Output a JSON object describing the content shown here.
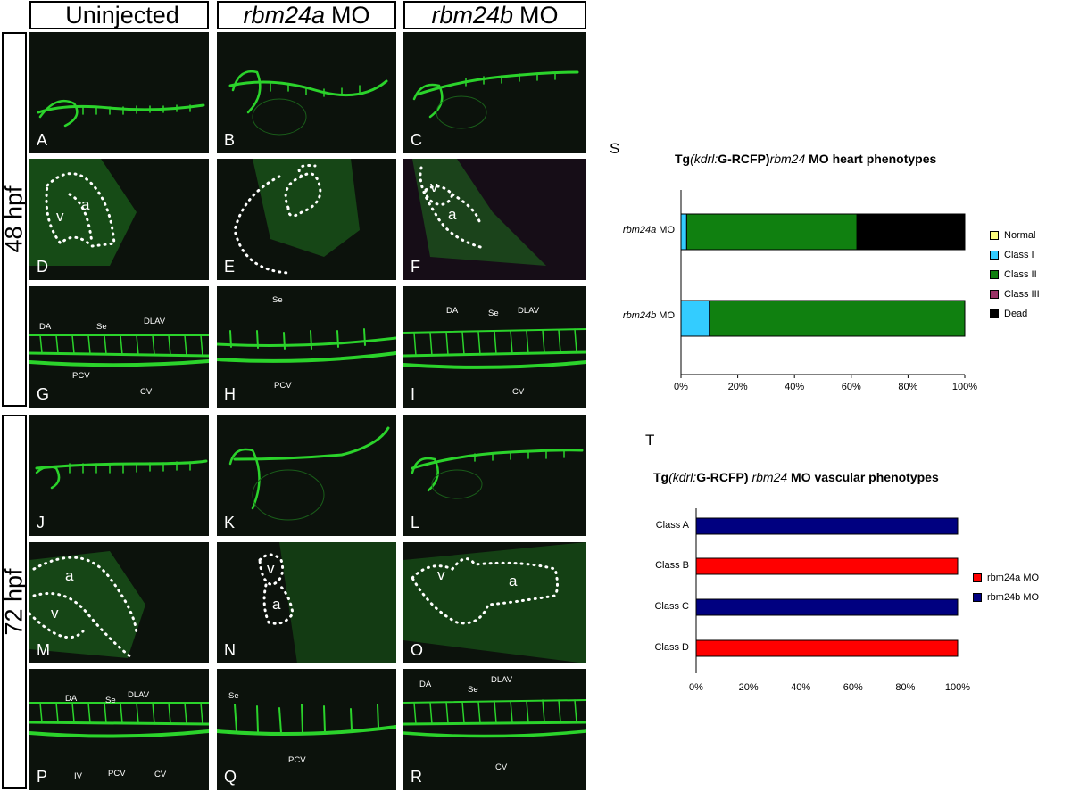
{
  "columns": [
    {
      "italic": "",
      "text": "Uninjected"
    },
    {
      "italic": "rbm24a",
      "text": "MO"
    },
    {
      "italic": "rbm24b",
      "text": "MO"
    }
  ],
  "rows": {
    "top": "48 hpf",
    "bottom": "72 hpf"
  },
  "panels": [
    "A",
    "B",
    "C",
    "D",
    "E",
    "F",
    "G",
    "H",
    "I",
    "J",
    "K",
    "L",
    "M",
    "N",
    "O",
    "P",
    "Q",
    "R"
  ],
  "chamber_labels": {
    "atrium": "a",
    "ventricle": "v"
  },
  "vessel_labels": {
    "DA": "DA",
    "Se": "Se",
    "DLAV": "DLAV",
    "PCV": "PCV",
    "CV": "CV",
    "IV": "IV"
  },
  "colors": {
    "vessel_green": "#2bd32b",
    "panel_bg": "#0c120c"
  },
  "chart_data": [
    {
      "letter": "S",
      "type": "bar",
      "orientation": "horizontal",
      "stacked": true,
      "percent": true,
      "title_prefix": "Tg",
      "title_italic": "(kdrl:",
      "title_mid": "G-RCFP)",
      "title_italic2": "rbm24",
      "title_suffix": " MO heart phenotypes",
      "categories": [
        {
          "italic": "rbm24a",
          "text": " MO"
        },
        {
          "italic": "rbm24b",
          "text": " MO"
        }
      ],
      "series": [
        {
          "name": "Normal",
          "color": "#ffff80",
          "values": [
            0,
            0
          ]
        },
        {
          "name": "Class I",
          "color": "#33ccff",
          "values": [
            2,
            10
          ]
        },
        {
          "name": "Class II",
          "color": "#108010",
          "values": [
            60,
            90
          ]
        },
        {
          "name": "Class III",
          "color": "#993366",
          "values": [
            0,
            0
          ]
        },
        {
          "name": "Dead",
          "color": "#000000",
          "values": [
            38,
            0
          ]
        }
      ],
      "xticks": [
        "0%",
        "20%",
        "40%",
        "60%",
        "80%",
        "100%"
      ],
      "legend_position": "right"
    },
    {
      "letter": "T",
      "type": "bar",
      "orientation": "horizontal",
      "percent": true,
      "title_prefix": "Tg",
      "title_italic": "(kdrl:",
      "title_mid": "G-RCFP) ",
      "title_italic2": "rbm24",
      "title_suffix": " MO vascular phenotypes",
      "categories": [
        "Class A",
        "Class B",
        "Class C",
        "Class D"
      ],
      "series": [
        {
          "name": "rbm24a MO",
          "color": "#ff0000"
        },
        {
          "name": "rbm24b MO",
          "color": "#000080"
        }
      ],
      "bars": [
        {
          "category": "Class A",
          "series": "rbm24b MO",
          "value": 100
        },
        {
          "category": "Class B",
          "series": "rbm24a MO",
          "value": 100
        },
        {
          "category": "Class C",
          "series": "rbm24b MO",
          "value": 100
        },
        {
          "category": "Class D",
          "series": "rbm24a MO",
          "value": 100
        }
      ],
      "xticks": [
        "0%",
        "20%",
        "40%",
        "60%",
        "80%",
        "100%"
      ],
      "legend_position": "right"
    }
  ]
}
